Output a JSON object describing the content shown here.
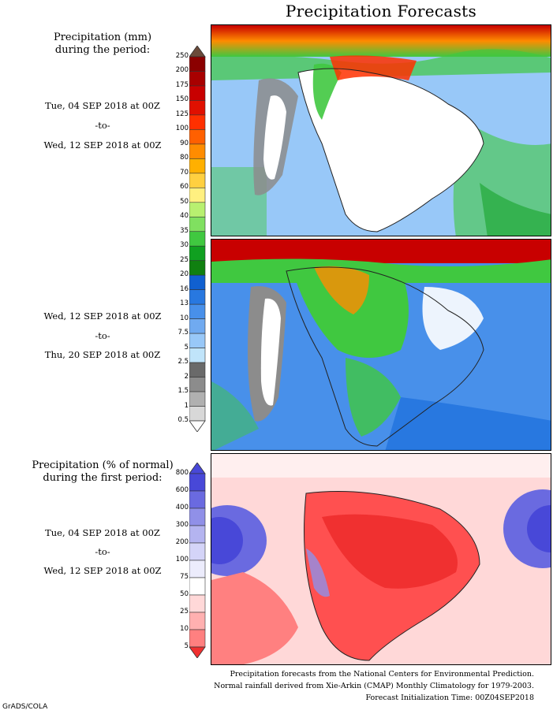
{
  "title": "Precipitation Forecasts",
  "section1": {
    "heading_line1": "Precipitation (mm)",
    "heading_line2": "during the period:"
  },
  "period1": {
    "start": "Tue, 04 SEP 2018 at 00Z",
    "to": "-to-",
    "end": "Wed, 12 SEP 2018 at 00Z"
  },
  "period2": {
    "start": "Wed, 12 SEP 2018 at 00Z",
    "to": "-to-",
    "end": "Thu, 20 SEP 2018 at 00Z"
  },
  "section2": {
    "heading_line1": "Precipitation (% of normal)",
    "heading_line2": "during the first period:"
  },
  "period3": {
    "start": "Tue, 04 SEP 2018 at 00Z",
    "to": "-to-",
    "end": "Wed, 12 SEP 2018 at 00Z"
  },
  "mm_scale": {
    "labels": [
      "250",
      "200",
      "175",
      "150",
      "125",
      "100",
      "90",
      "80",
      "70",
      "60",
      "50",
      "40",
      "35",
      "30",
      "25",
      "20",
      "16",
      "13",
      "10",
      "7.5",
      "5",
      "2.5",
      "2",
      "1.5",
      "1",
      "0.5"
    ],
    "colors": [
      "#6b0000",
      "#8b0000",
      "#a80000",
      "#c80000",
      "#e01000",
      "#ff3000",
      "#ff6000",
      "#ff8c00",
      "#ffb000",
      "#ffd040",
      "#fff080",
      "#b8f070",
      "#80e060",
      "#40c840",
      "#10a020",
      "#108010",
      "#1060d0",
      "#2878e0",
      "#4890ea",
      "#70aaf0",
      "#98c8f8",
      "#c0e4fa",
      "#6a6a6a",
      "#8c8c8c",
      "#b0b0b0",
      "#d8d8d8"
    ],
    "top_arrow_color": "#6b4a3a"
  },
  "pct_scale": {
    "labels": [
      "800",
      "600",
      "400",
      "300",
      "200",
      "100",
      "75",
      "50",
      "25",
      "10",
      "5"
    ],
    "colors": [
      "#4848d8",
      "#6a6ae0",
      "#9090e8",
      "#b4b4f0",
      "#d4d4f8",
      "#ececfc",
      "#ffffff",
      "#ffd8d8",
      "#ffb0b0",
      "#ff8080",
      "#ff5050",
      "#f03030"
    ]
  },
  "footer": {
    "line1": "Precipitation forecasts from the National Centers for Environmental Prediction.",
    "line2": "Normal rainfall derived from Xie-Arkin (CMAP) Monthly Climatology for 1979-2003.",
    "line3": "Forecast Initialization Time: 00Z04SEP2018"
  },
  "credit": "GrADS/COLA"
}
